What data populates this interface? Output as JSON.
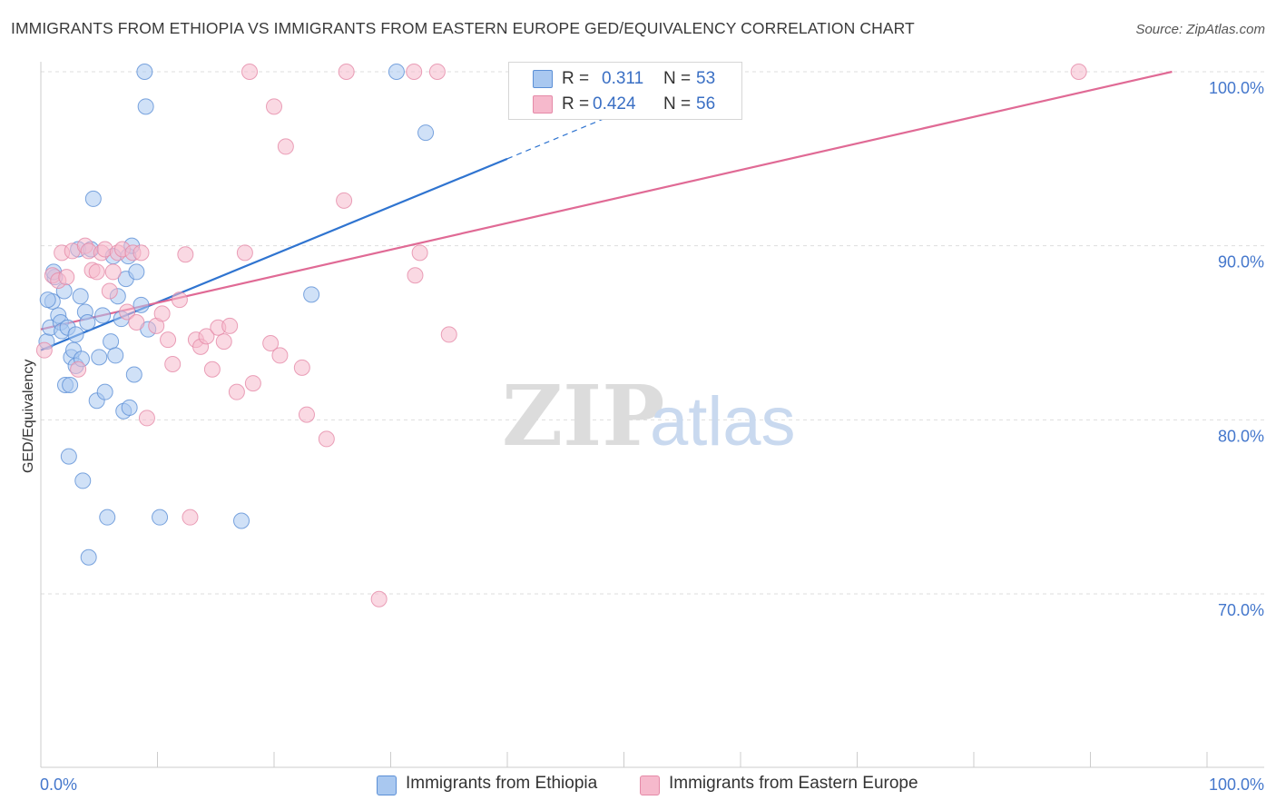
{
  "title": "IMMIGRANTS FROM ETHIOPIA VS IMMIGRANTS FROM EASTERN EUROPE GED/EQUIVALENCY CORRELATION CHART",
  "source": "Source: ZipAtlas.com",
  "watermark": {
    "zip": "ZIP",
    "atlas": "atlas"
  },
  "colors": {
    "ethiopia_fill": "#a9c8f0",
    "ethiopia_stroke": "#5b8fd6",
    "ethiopia_line": "#2f74d0",
    "eeurope_fill": "#f6b9cc",
    "eeurope_stroke": "#e58aa8",
    "eeurope_line": "#e06a95",
    "axis_label": "#4477cc",
    "grid": "#dddddd"
  },
  "stats": {
    "rows": [
      {
        "r_label": "R =",
        "r_value": "0.311",
        "n_label": "N =",
        "n_value": "53"
      },
      {
        "r_label": "R =",
        "r_value": "0.424",
        "n_label": "N =",
        "n_value": "56"
      }
    ]
  },
  "legend": {
    "ethiopia": "Immigrants from Ethiopia",
    "eeurope": "Immigrants from Eastern Europe"
  },
  "chart_data": {
    "type": "scatter",
    "title": "IMMIGRANTS FROM ETHIOPIA VS IMMIGRANTS FROM EASTERN EUROPE GED/EQUIVALENCY CORRELATION CHART",
    "xlabel": "",
    "ylabel": "GED/Equivalency",
    "xlim": [
      0,
      100
    ],
    "ylim": [
      60,
      100
    ],
    "x_tick_labels": [
      "0.0%",
      "100.0%"
    ],
    "y_tick_labels": [
      "100.0%",
      "90.0%",
      "80.0%",
      "70.0%"
    ],
    "y_ticks": [
      100,
      90,
      80,
      70
    ],
    "series": [
      {
        "name": "Immigrants from Ethiopia",
        "points": [
          [
            0.5,
            84.5
          ],
          [
            0.8,
            85.3
          ],
          [
            1.0,
            86.8
          ],
          [
            1.2,
            88.2
          ],
          [
            1.5,
            86.0
          ],
          [
            1.7,
            85.6
          ],
          [
            1.8,
            85.1
          ],
          [
            2.0,
            87.4
          ],
          [
            2.1,
            82.0
          ],
          [
            2.3,
            85.3
          ],
          [
            2.4,
            77.9
          ],
          [
            2.6,
            83.6
          ],
          [
            2.8,
            84.0
          ],
          [
            3.0,
            83.1
          ],
          [
            3.0,
            84.9
          ],
          [
            3.2,
            89.8
          ],
          [
            3.4,
            87.1
          ],
          [
            3.6,
            76.5
          ],
          [
            3.8,
            86.2
          ],
          [
            4.0,
            85.6
          ],
          [
            4.3,
            89.8
          ],
          [
            4.5,
            92.7
          ],
          [
            4.8,
            81.1
          ],
          [
            5.0,
            83.6
          ],
          [
            5.3,
            86.0
          ],
          [
            5.5,
            81.6
          ],
          [
            5.7,
            74.4
          ],
          [
            6.0,
            84.5
          ],
          [
            6.2,
            89.4
          ],
          [
            6.4,
            83.7
          ],
          [
            6.6,
            87.1
          ],
          [
            6.9,
            85.8
          ],
          [
            7.1,
            80.5
          ],
          [
            7.3,
            88.1
          ],
          [
            7.5,
            89.4
          ],
          [
            7.6,
            80.7
          ],
          [
            7.8,
            90.0
          ],
          [
            8.0,
            82.6
          ],
          [
            8.2,
            88.5
          ],
          [
            8.6,
            86.6
          ],
          [
            8.9,
            100.0
          ],
          [
            9.0,
            98.0
          ],
          [
            9.2,
            85.2
          ],
          [
            10.2,
            74.4
          ],
          [
            17.2,
            74.2
          ],
          [
            23.2,
            87.2
          ],
          [
            30.5,
            100.0
          ],
          [
            33.0,
            96.5
          ],
          [
            4.1,
            72.1
          ],
          [
            2.5,
            82.0
          ],
          [
            1.1,
            88.5
          ],
          [
            0.6,
            86.9
          ],
          [
            3.5,
            83.5
          ]
        ]
      },
      {
        "name": "Immigrants from Eastern Europe",
        "points": [
          [
            0.3,
            84.0
          ],
          [
            1.0,
            88.3
          ],
          [
            1.5,
            88.0
          ],
          [
            1.8,
            89.6
          ],
          [
            2.2,
            88.2
          ],
          [
            2.7,
            89.7
          ],
          [
            3.2,
            82.9
          ],
          [
            3.8,
            90.0
          ],
          [
            4.1,
            89.7
          ],
          [
            4.4,
            88.6
          ],
          [
            4.8,
            88.5
          ],
          [
            5.2,
            89.6
          ],
          [
            5.5,
            89.8
          ],
          [
            5.9,
            87.4
          ],
          [
            6.2,
            88.5
          ],
          [
            6.6,
            89.6
          ],
          [
            7.0,
            89.8
          ],
          [
            7.4,
            86.2
          ],
          [
            7.9,
            89.6
          ],
          [
            8.2,
            85.6
          ],
          [
            8.6,
            89.6
          ],
          [
            9.1,
            80.1
          ],
          [
            9.9,
            85.4
          ],
          [
            10.4,
            86.1
          ],
          [
            10.9,
            84.6
          ],
          [
            11.3,
            83.2
          ],
          [
            11.9,
            86.9
          ],
          [
            12.4,
            89.5
          ],
          [
            12.8,
            74.4
          ],
          [
            13.3,
            84.6
          ],
          [
            13.7,
            84.2
          ],
          [
            14.2,
            84.8
          ],
          [
            14.7,
            82.9
          ],
          [
            15.2,
            85.3
          ],
          [
            15.7,
            84.5
          ],
          [
            16.2,
            85.4
          ],
          [
            16.8,
            81.6
          ],
          [
            17.5,
            89.6
          ],
          [
            18.2,
            82.1
          ],
          [
            19.7,
            84.4
          ],
          [
            20.5,
            83.7
          ],
          [
            22.4,
            83.0
          ],
          [
            22.8,
            80.3
          ],
          [
            24.5,
            78.9
          ],
          [
            26.0,
            92.6
          ],
          [
            29.0,
            69.7
          ],
          [
            32.1,
            88.3
          ],
          [
            32.5,
            89.6
          ],
          [
            35.0,
            84.9
          ],
          [
            17.9,
            100.0
          ],
          [
            20.0,
            98.0
          ],
          [
            21.0,
            95.7
          ],
          [
            26.2,
            100.0
          ],
          [
            32.0,
            100.0
          ],
          [
            34.0,
            100.0
          ],
          [
            89.0,
            100.0
          ]
        ]
      }
    ],
    "trendlines": [
      {
        "name": "Immigrants from Ethiopia",
        "from": [
          0,
          84.0
        ],
        "to": [
          40,
          95.0
        ],
        "dashed_to": [
          58,
          100.0
        ]
      },
      {
        "name": "Immigrants from Eastern Europe",
        "from": [
          0,
          85.2
        ],
        "to": [
          97,
          100.0
        ]
      }
    ]
  }
}
